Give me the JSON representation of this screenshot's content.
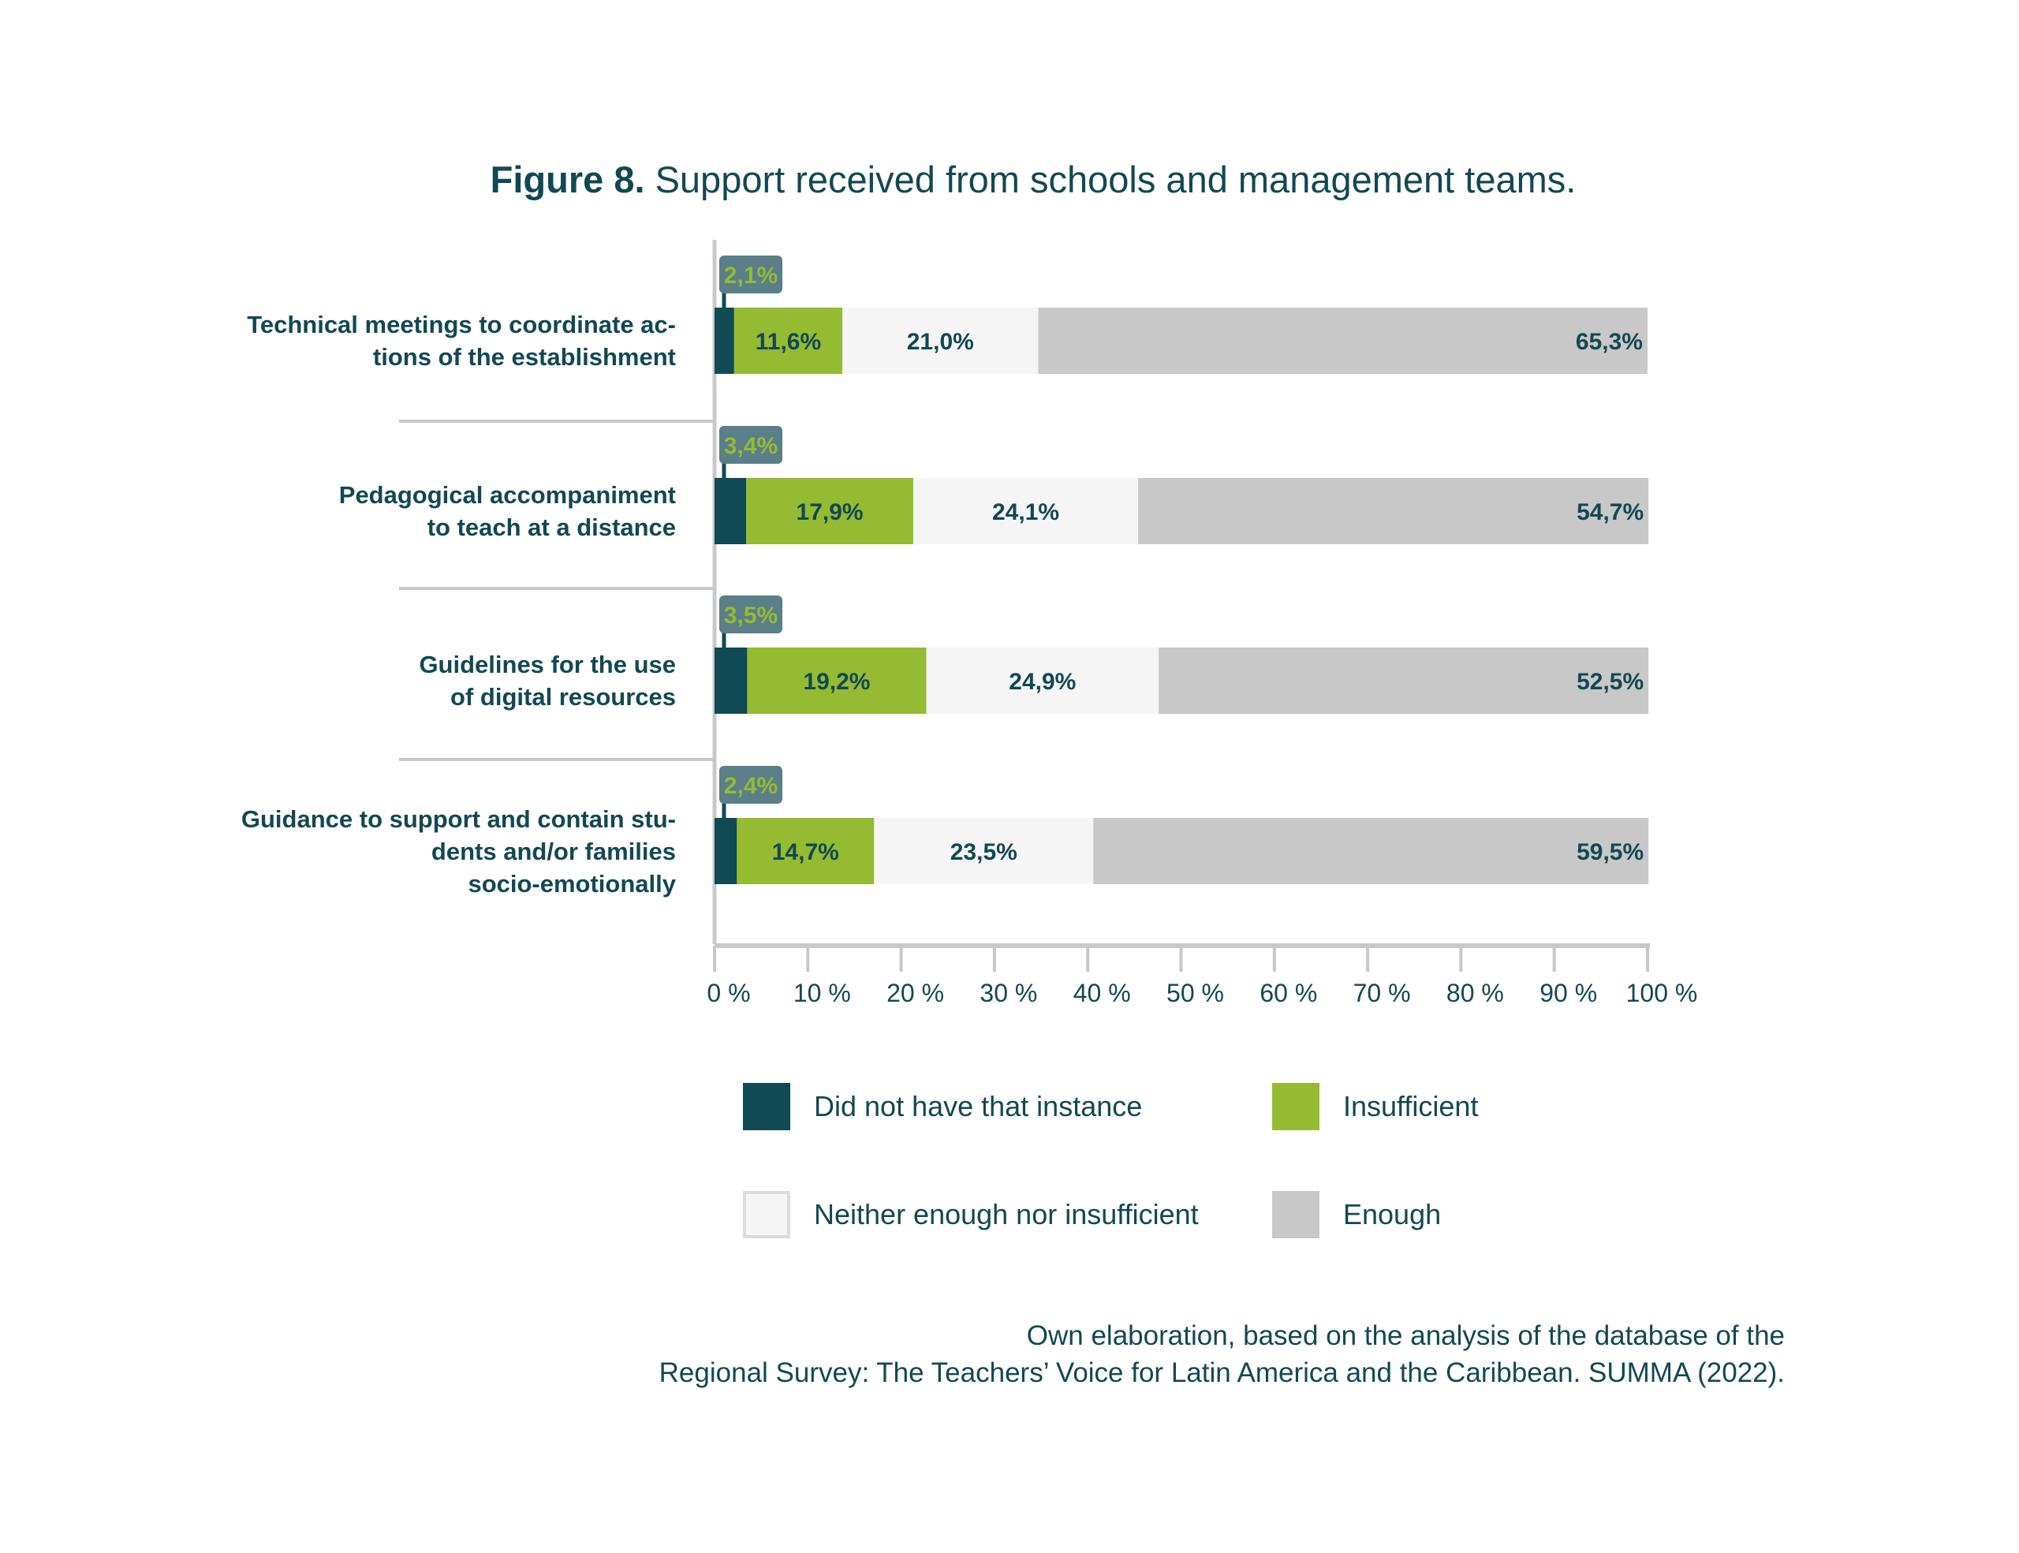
{
  "title": {
    "bold": "Figure 8.",
    "text": " Support received from schools and management teams."
  },
  "chart_data": {
    "type": "bar",
    "orientation": "horizontal-stacked",
    "title": "Figure 8. Support received from schools and management teams.",
    "categories": [
      "Technical meetings to coordinate ac-\ntions of the establishment",
      "Pedagogical accompaniment\nto teach at a distance",
      "Guidelines for the use\nof digital resources",
      "Guidance to support and contain stu-\ndents and/or families\nsocio-emotionally"
    ],
    "series": [
      {
        "name": "Did not have that instance",
        "color": "#0f4a55",
        "values": [
          2.1,
          3.4,
          3.5,
          2.4
        ],
        "labels": [
          "2,1%",
          "3,4%",
          "3,5%",
          "2,4%"
        ]
      },
      {
        "name": "Insufficient",
        "color": "#94bb32",
        "values": [
          11.6,
          17.9,
          19.2,
          14.7
        ],
        "labels": [
          "11,6%",
          "17,9%",
          "19,2%",
          "14,7%"
        ]
      },
      {
        "name": "Neither enough nor insufficient",
        "color": "#f5f5f5",
        "values": [
          21.0,
          24.1,
          24.9,
          23.5
        ],
        "labels": [
          "21,0%",
          "24,1%",
          "24,9%",
          "23,5%"
        ]
      },
      {
        "name": "Enough",
        "color": "#c8c8c8",
        "values": [
          65.3,
          54.7,
          52.5,
          59.5
        ],
        "labels": [
          "65,3%",
          "54,7%",
          "52,5%",
          "59,5%"
        ]
      }
    ],
    "xlim": [
      0,
      100
    ],
    "xticks": [
      "0 %",
      "10 %",
      "20 %",
      "30 %",
      "40 %",
      "50 %",
      "60 %",
      "70 %",
      "80 %",
      "90 %",
      "100 %"
    ],
    "legend_position": "bottom"
  },
  "source": {
    "line1": "Own elaboration, based on the analysis of the database of the",
    "line2": "Regional Survey: The Teachers’ Voice for Latin America and the Caribbean. SUMMA (2022)."
  }
}
